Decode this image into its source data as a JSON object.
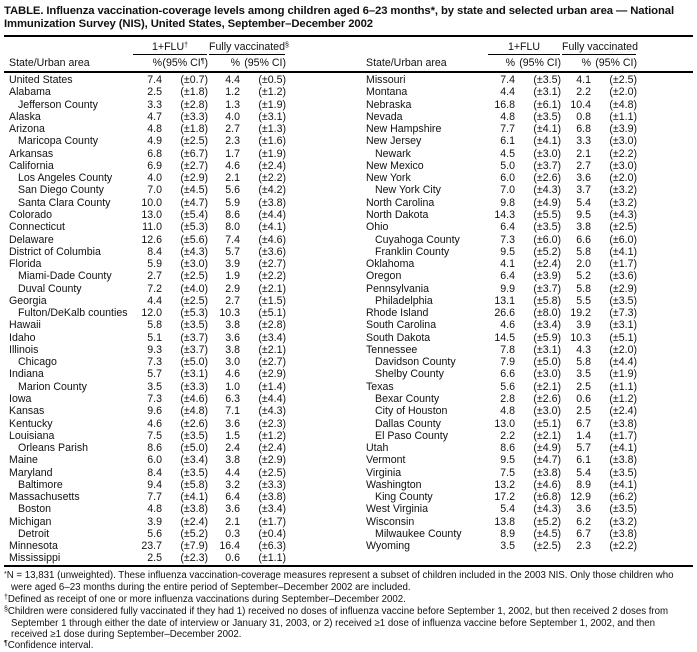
{
  "title": "TABLE. Influenza vaccination-coverage levels among children aged 6–23 months*, by state and selected urban area — National Immunization Survey (NIS), United States, September–December 2002",
  "header": {
    "state_col": "State/Urban area",
    "pct": "%",
    "ci_plain": "(95% CI)",
    "ci_marked_pre": "(95% CI",
    "ci_marker": "¶",
    "ci_marked_post": ")",
    "left_group1": "1+FLU",
    "left_group1_marker": "†",
    "left_group2": "Fully vaccinated",
    "left_group2_marker": "§",
    "right_group1": "1+FLU",
    "right_group2": "Fully vaccinated"
  },
  "row_format": [
    "name",
    "indent_level",
    "one_plus_flu_pct",
    "one_plus_flu_ci",
    "fully_vaccinated_pct",
    "fully_vaccinated_ci"
  ],
  "left_rows": [
    [
      "United States",
      0,
      "7.4",
      "(±0.7)",
      "4.4",
      "(±0.5)"
    ],
    [
      "Alabama",
      0,
      "2.5",
      "(±1.8)",
      "1.2",
      "(±1.2)"
    ],
    [
      "Jefferson County",
      1,
      "3.3",
      "(±2.8)",
      "1.3",
      "(±1.9)"
    ],
    [
      "Alaska",
      0,
      "4.7",
      "(±3.3)",
      "4.0",
      "(±3.1)"
    ],
    [
      "Arizona",
      0,
      "4.8",
      "(±1.8)",
      "2.7",
      "(±1.3)"
    ],
    [
      "Maricopa County",
      1,
      "4.9",
      "(±2.5)",
      "2.3",
      "(±1.6)"
    ],
    [
      "Arkansas",
      0,
      "6.8",
      "(±6.7)",
      "1.7",
      "(±1.9)"
    ],
    [
      "California",
      0,
      "6.9",
      "(±2.7)",
      "4.6",
      "(±2.4)"
    ],
    [
      "Los Angeles County",
      1,
      "4.0",
      "(±2.9)",
      "2.1",
      "(±2.2)"
    ],
    [
      "San Diego County",
      1,
      "7.0",
      "(±4.5)",
      "5.6",
      "(±4.2)"
    ],
    [
      "Santa Clara County",
      1,
      "10.0",
      "(±4.7)",
      "5.9",
      "(±3.8)"
    ],
    [
      "Colorado",
      0,
      "13.0",
      "(±5.4)",
      "8.6",
      "(±4.4)"
    ],
    [
      "Connecticut",
      0,
      "11.0",
      "(±5.3)",
      "8.0",
      "(±4.1)"
    ],
    [
      "Delaware",
      0,
      "12.6",
      "(±5.6)",
      "7.4",
      "(±4.6)"
    ],
    [
      "District of Columbia",
      0,
      "8.4",
      "(±4.3)",
      "5.7",
      "(±3.6)"
    ],
    [
      "Florida",
      0,
      "5.9",
      "(±3.0)",
      "3.9",
      "(±2.7)"
    ],
    [
      "Miami-Dade County",
      1,
      "2.7",
      "(±2.5)",
      "1.9",
      "(±2.2)"
    ],
    [
      "Duval County",
      1,
      "7.2",
      "(±4.0)",
      "2.9",
      "(±2.1)"
    ],
    [
      "Georgia",
      0,
      "4.4",
      "(±2.5)",
      "2.7",
      "(±1.5)"
    ],
    [
      "Fulton/DeKalb counties",
      1,
      "12.0",
      "(±5.3)",
      "10.3",
      "(±5.1)"
    ],
    [
      "Hawaii",
      0,
      "5.8",
      "(±3.5)",
      "3.8",
      "(±2.8)"
    ],
    [
      "Idaho",
      0,
      "5.1",
      "(±3.7)",
      "3.6",
      "(±3.4)"
    ],
    [
      "Illinois",
      0,
      "9.3",
      "(±3.7)",
      "3.8",
      "(±2.1)"
    ],
    [
      "Chicago",
      1,
      "7.3",
      "(±5.0)",
      "3.0",
      "(±2.7)"
    ],
    [
      "Indiana",
      0,
      "5.7",
      "(±3.1)",
      "4.6",
      "(±2.9)"
    ],
    [
      "Marion County",
      1,
      "3.5",
      "(±3.3)",
      "1.0",
      "(±1.4)"
    ],
    [
      "Iowa",
      0,
      "7.3",
      "(±4.6)",
      "6.3",
      "(±4.4)"
    ],
    [
      "Kansas",
      0,
      "9.6",
      "(±4.8)",
      "7.1",
      "(±4.3)"
    ],
    [
      "Kentucky",
      0,
      "4.6",
      "(±2.6)",
      "3.6",
      "(±2.3)"
    ],
    [
      "Louisiana",
      0,
      "7.5",
      "(±3.5)",
      "1.5",
      "(±1.2)"
    ],
    [
      "Orleans Parish",
      1,
      "8.6",
      "(±5.0)",
      "2.4",
      "(±2.4)"
    ],
    [
      "Maine",
      0,
      "6.0",
      "(±3.4)",
      "3.8",
      "(±2.9)"
    ],
    [
      "Maryland",
      0,
      "8.4",
      "(±3.5)",
      "4.4",
      "(±2.5)"
    ],
    [
      "Baltimore",
      1,
      "9.4",
      "(±5.8)",
      "3.2",
      "(±3.3)"
    ],
    [
      "Massachusetts",
      0,
      "7.7",
      "(±4.1)",
      "6.4",
      "(±3.8)"
    ],
    [
      "Boston",
      1,
      "4.8",
      "(±3.8)",
      "3.6",
      "(±3.4)"
    ],
    [
      "Michigan",
      0,
      "3.9",
      "(±2.4)",
      "2.1",
      "(±1.7)"
    ],
    [
      "Detroit",
      1,
      "5.6",
      "(±5.2)",
      "0.3",
      "(±0.4)"
    ],
    [
      "Minnesota",
      0,
      "23.7",
      "(±7.9)",
      "16.4",
      "(±6.3)"
    ],
    [
      "Mississippi",
      0,
      "2.5",
      "(±2.3)",
      "0.6",
      "(±1.1)"
    ]
  ],
  "right_rows": [
    [
      "Missouri",
      0,
      "7.4",
      "(±3.5)",
      "4.1",
      "(±2.5)"
    ],
    [
      "Montana",
      0,
      "4.4",
      "(±3.1)",
      "2.2",
      "(±2.0)"
    ],
    [
      "Nebraska",
      0,
      "16.8",
      "(±6.1)",
      "10.4",
      "(±4.8)"
    ],
    [
      "Nevada",
      0,
      "4.8",
      "(±3.5)",
      "0.8",
      "(±1.1)"
    ],
    [
      "New Hampshire",
      0,
      "7.7",
      "(±4.1)",
      "6.8",
      "(±3.9)"
    ],
    [
      "New Jersey",
      0,
      "6.1",
      "(±4.1)",
      "3.3",
      "(±3.0)"
    ],
    [
      "Newark",
      1,
      "4.5",
      "(±3.0)",
      "2.1",
      "(±2.2)"
    ],
    [
      "New Mexico",
      0,
      "5.0",
      "(±3.7)",
      "2.7",
      "(±3.0)"
    ],
    [
      "New York",
      0,
      "6.0",
      "(±2.6)",
      "3.6",
      "(±2.0)"
    ],
    [
      "New York City",
      1,
      "7.0",
      "(±4.3)",
      "3.7",
      "(±3.2)"
    ],
    [
      "North Carolina",
      0,
      "9.8",
      "(±4.9)",
      "5.4",
      "(±3.2)"
    ],
    [
      "North Dakota",
      0,
      "14.3",
      "(±5.5)",
      "9.5",
      "(±4.3)"
    ],
    [
      "Ohio",
      0,
      "6.4",
      "(±3.5)",
      "3.8",
      "(±2.5)"
    ],
    [
      "Cuyahoga County",
      1,
      "7.3",
      "(±6.0)",
      "6.6",
      "(±6.0)"
    ],
    [
      "Franklin County",
      1,
      "9.5",
      "(±5.2)",
      "5.8",
      "(±4.1)"
    ],
    [
      "Oklahoma",
      0,
      "4.1",
      "(±2.4)",
      "2.0",
      "(±1.7)"
    ],
    [
      "Oregon",
      0,
      "6.4",
      "(±3.9)",
      "5.2",
      "(±3.6)"
    ],
    [
      "Pennsylvania",
      0,
      "9.9",
      "(±3.7)",
      "5.8",
      "(±2.9)"
    ],
    [
      "Philadelphia",
      1,
      "13.1",
      "(±5.8)",
      "5.5",
      "(±3.5)"
    ],
    [
      "Rhode Island",
      0,
      "26.6",
      "(±8.0)",
      "19.2",
      "(±7.3)"
    ],
    [
      "South Carolina",
      0,
      "4.6",
      "(±3.4)",
      "3.9",
      "(±3.1)"
    ],
    [
      "South Dakota",
      0,
      "14.5",
      "(±5.9)",
      "10.3",
      "(±5.1)"
    ],
    [
      "Tennessee",
      0,
      "7.8",
      "(±3.1)",
      "4.3",
      "(±2.0)"
    ],
    [
      "Davidson County",
      1,
      "7.9",
      "(±5.0)",
      "5.8",
      "(±4.4)"
    ],
    [
      "Shelby County",
      1,
      "6.6",
      "(±3.0)",
      "3.5",
      "(±1.9)"
    ],
    [
      "Texas",
      0,
      "5.6",
      "(±2.1)",
      "2.5",
      "(±1.1)"
    ],
    [
      "Bexar County",
      1,
      "2.8",
      "(±2.6)",
      "0.6",
      "(±1.2)"
    ],
    [
      "City of Houston",
      1,
      "4.8",
      "(±3.0)",
      "2.5",
      "(±2.4)"
    ],
    [
      "Dallas County",
      1,
      "13.0",
      "(±5.1)",
      "6.7",
      "(±3.8)"
    ],
    [
      "El Paso County",
      1,
      "2.2",
      "(±2.1)",
      "1.4",
      "(±1.7)"
    ],
    [
      "Utah",
      0,
      "8.6",
      "(±4.9)",
      "5.7",
      "(±4.1)"
    ],
    [
      "Vermont",
      0,
      "9.5",
      "(±4.7)",
      "6.1",
      "(±3.8)"
    ],
    [
      "Virginia",
      0,
      "7.5",
      "(±3.8)",
      "5.4",
      "(±3.5)"
    ],
    [
      "Washington",
      0,
      "13.2",
      "(±4.6)",
      "8.9",
      "(±4.1)"
    ],
    [
      "King County",
      1,
      "17.2",
      "(±6.8)",
      "12.9",
      "(±6.2)"
    ],
    [
      "West Virginia",
      0,
      "5.4",
      "(±4.3)",
      "3.6",
      "(±3.5)"
    ],
    [
      "Wisconsin",
      0,
      "13.8",
      "(±5.2)",
      "6.2",
      "(±3.2)"
    ],
    [
      "Milwaukee County",
      1,
      "8.9",
      "(±4.5)",
      "6.7",
      "(±3.8)"
    ],
    [
      "Wyoming",
      0,
      "3.5",
      "(±2.5)",
      "2.3",
      "(±2.2)"
    ]
  ],
  "footnotes": [
    {
      "marker": "*",
      "text": "N = 13,831 (unweighted). These influenza vaccination-coverage measures represent a subset of children included in the 2003 NIS. Only those children who were aged 6–23 months during the entire period of September–December 2002 are included."
    },
    {
      "marker": "†",
      "text": "Defined as receipt of one or more influenza vaccinations during September–December 2002."
    },
    {
      "marker": "§",
      "text": "Children were considered fully vaccinated if they had 1) received no doses of influenza vaccine before September 1, 2002, but then received 2 doses from September 1 through either the date of interview or January 31, 2003, or 2) received ≥1 dose of influenza vaccine before September 1, 2002, and then received ≥1 dose during September–December 2002."
    },
    {
      "marker": "¶",
      "text": "Confidence interval."
    }
  ],
  "colors": {
    "text": "#111111",
    "rule": "#000000",
    "background": "#ffffff"
  }
}
